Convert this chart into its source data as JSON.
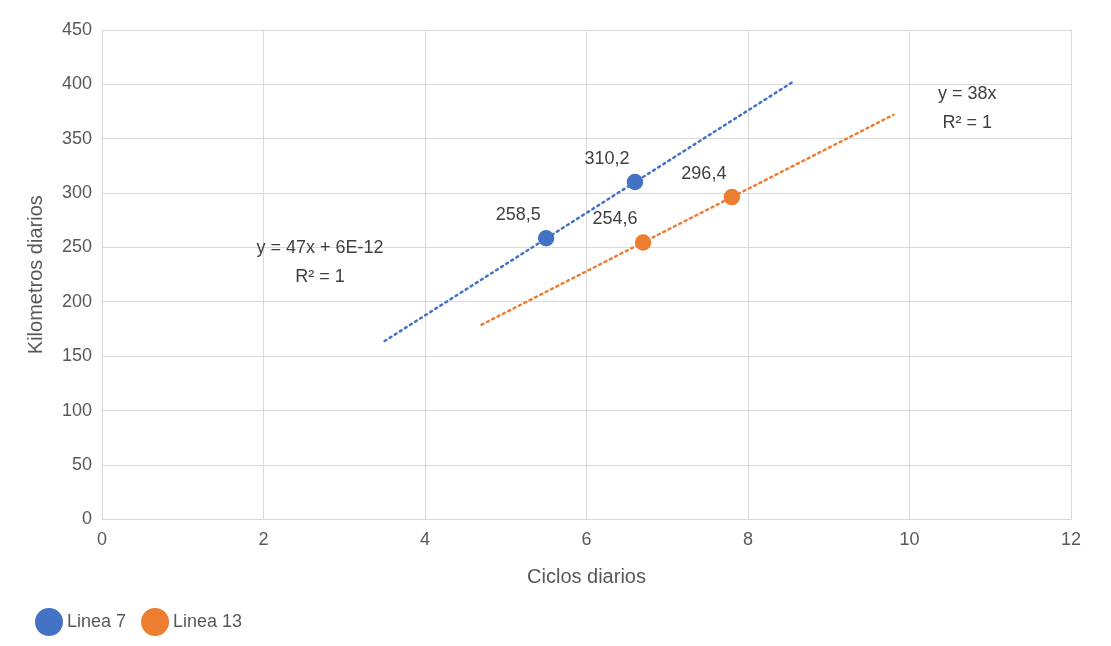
{
  "chart_data": {
    "type": "scatter",
    "xlabel": "Ciclos diarios",
    "ylabel": "Kilometros diarios",
    "xlim": [
      0,
      12
    ],
    "xticks": [
      0,
      2,
      4,
      6,
      8,
      10,
      12
    ],
    "ylim": [
      0,
      450
    ],
    "yticks": [
      0,
      50,
      100,
      150,
      200,
      250,
      300,
      350,
      400,
      450
    ],
    "grid": true,
    "legend": "bottom left",
    "marker": "circle",
    "series": [
      {
        "name": "Linea 7",
        "color": "#4472c4",
        "x": [
          5.5,
          6.6
        ],
        "values": [
          258.5,
          310.2
        ],
        "value_labels": [
          "258,5",
          "310,2"
        ]
      },
      {
        "name": "Linea 13",
        "color": "#ed7d31",
        "x": [
          6.7,
          7.8
        ],
        "values": [
          254.6,
          296.4
        ],
        "value_labels": [
          "254,6",
          "296,4"
        ]
      },
      {
        "type": "line",
        "color": "#4472c4",
        "x": [
          3.5,
          8.55
        ],
        "values": [
          164,
          402
        ],
        "marker": "none",
        "line_style": "dotted"
      },
      {
        "type": "line",
        "color": "#ed7d31",
        "x": [
          4.7,
          9.8
        ],
        "values": [
          179,
          372
        ],
        "marker": "none",
        "line_style": "dotted"
      }
    ],
    "annotations": [
      "y = 47x + 6E-12",
      "R² = 1",
      "y = 38x",
      "R² = 1"
    ]
  }
}
